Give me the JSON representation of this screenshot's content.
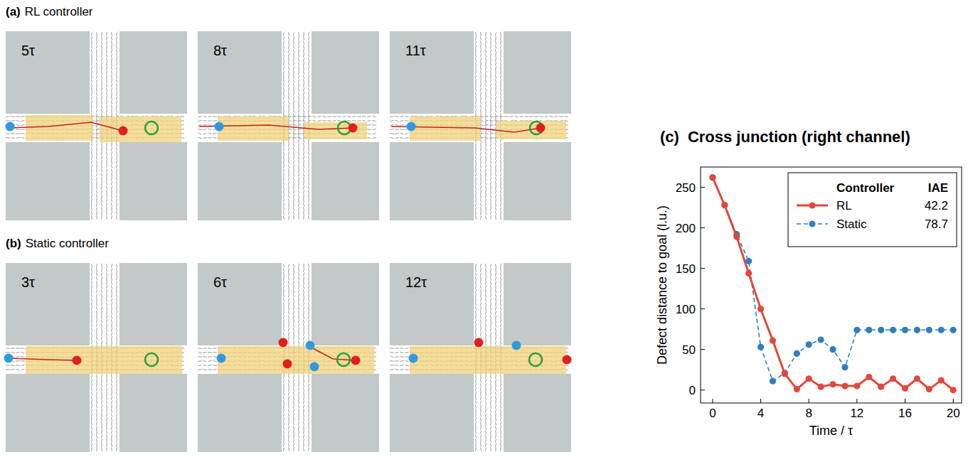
{
  "panels": [
    {
      "letter": "(a)",
      "title": "RL controller",
      "frames": [
        "5τ",
        "8τ",
        "11τ"
      ]
    },
    {
      "letter": "(b)",
      "title": "Static controller",
      "frames": [
        "3τ",
        "6τ",
        "12τ"
      ]
    }
  ],
  "chart_data": {
    "type": "line",
    "label": "(c)",
    "title": "Cross junction (right channel)",
    "x_label": "Time / τ",
    "y_label": "Defect distance to goal (l.u.)",
    "x": [
      0,
      1,
      2,
      3,
      4,
      5,
      6,
      7,
      8,
      9,
      10,
      11,
      12,
      13,
      14,
      15,
      16,
      17,
      18,
      19,
      20
    ],
    "series": [
      {
        "name": "RL",
        "color": "#e2483c",
        "line_style": "solid",
        "marker": "circle",
        "iae": 42.2,
        "values": [
          262,
          228,
          189,
          144,
          100,
          61,
          20,
          1,
          14,
          4,
          7,
          5,
          5,
          16,
          4,
          14,
          2,
          14,
          1,
          12,
          0
        ]
      },
      {
        "name": "Static",
        "color": "#2f7fbf",
        "line_style": "dashed",
        "marker": "circle",
        "iae": 78.7,
        "values": [
          262,
          228,
          192,
          159,
          53,
          11,
          21,
          45,
          56,
          62,
          50,
          28,
          74,
          74,
          74,
          74,
          74,
          74,
          74,
          74,
          74
        ]
      }
    ],
    "legend_columns": [
      "Controller",
      "IAE"
    ],
    "legend": "upper right",
    "xlim": [
      -1,
      20.7
    ],
    "xticks": [
      0,
      4,
      8,
      12,
      16,
      20
    ],
    "ylim": [
      -16,
      275
    ],
    "yticks": [
      0,
      50,
      100,
      150,
      200,
      250
    ],
    "grid": false
  }
}
